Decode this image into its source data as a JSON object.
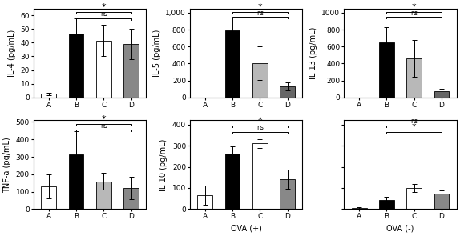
{
  "chart_data": [
    {
      "type": "bar",
      "ylabel": "IL-4 (pg/mL)",
      "categories": [
        "A",
        "B",
        "C",
        "D"
      ],
      "values": [
        2.5,
        46.5,
        41.5,
        39.0
      ],
      "errors": [
        1.0,
        11.0,
        11.5,
        11.0
      ],
      "colors": [
        "white",
        "black",
        "white",
        "#888888"
      ],
      "ylim": [
        0,
        65
      ],
      "yticks": [
        0,
        10,
        20,
        30,
        40,
        50,
        60
      ],
      "annotations": [
        {
          "x1": "B",
          "x2": "D",
          "y": 58,
          "text": "ns"
        },
        {
          "x1": "B",
          "x2": "D",
          "y": 62.5,
          "text": "*"
        }
      ]
    },
    {
      "type": "bar",
      "ylabel": "IL-5 (pg/mL)",
      "categories": [
        "A",
        "B",
        "C",
        "D"
      ],
      "values": [
        0,
        790,
        405,
        130
      ],
      "errors": [
        0,
        150,
        200,
        45
      ],
      "colors": [
        "white",
        "black",
        "#b8b8b8",
        "#666666"
      ],
      "ylim": [
        0,
        1050
      ],
      "yticks": [
        0,
        200,
        400,
        600,
        800,
        {
          "value": 1000,
          "label": "1,000"
        }
      ],
      "annotations": [
        {
          "x1": "B",
          "x2": "D",
          "y": 950,
          "text": "ns"
        },
        {
          "x1": "B",
          "x2": "D",
          "y": 1010,
          "text": "*"
        }
      ]
    },
    {
      "type": "bar",
      "ylabel": "IL-13 (pg/mL)",
      "categories": [
        "A",
        "B",
        "C",
        "D"
      ],
      "values": [
        0,
        650,
        460,
        75
      ],
      "errors": [
        0,
        180,
        220,
        30
      ],
      "colors": [
        "white",
        "black",
        "#b8b8b8",
        "#666666"
      ],
      "ylim": [
        0,
        1050
      ],
      "yticks": [
        0,
        200,
        400,
        600,
        800,
        1000
      ],
      "annotations": [
        {
          "x1": "B",
          "x2": "D",
          "y": 950,
          "text": "ns"
        },
        {
          "x1": "B",
          "x2": "D",
          "y": 1010,
          "text": "*"
        }
      ]
    },
    {
      "type": "bar",
      "ylabel": "TNF-a (pg/mL)",
      "categories": [
        "A",
        "B",
        "C",
        "D"
      ],
      "values": [
        130,
        315,
        160,
        120
      ],
      "errors": [
        70,
        130,
        50,
        65
      ],
      "colors": [
        "white",
        "black",
        "#b8b8b8",
        "#888888"
      ],
      "ylim": [
        0,
        510
      ],
      "yticks": [
        0,
        100,
        200,
        300,
        400,
        500
      ],
      "annotations": [
        {
          "x1": "B",
          "x2": "D",
          "y": 455,
          "text": "ns"
        },
        {
          "x1": "B",
          "x2": "D",
          "y": 490,
          "text": "*"
        }
      ]
    },
    {
      "type": "bar",
      "ylabel": "IL-10 (pg/mL)",
      "xlabel": "OVA (+)",
      "categories": [
        "A",
        "B",
        "C",
        "D"
      ],
      "values": [
        65,
        262,
        310,
        140
      ],
      "errors": [
        45,
        35,
        20,
        45
      ],
      "colors": [
        "white",
        "black",
        "white",
        "#888888"
      ],
      "ylim": [
        0,
        420
      ],
      "yticks": [
        0,
        100,
        200,
        300,
        400
      ],
      "annotations": [
        {
          "x1": "B",
          "x2": "D",
          "y": 365,
          "text": "ns"
        },
        {
          "x1": "B",
          "x2": "D",
          "y": 395,
          "text": "*"
        }
      ]
    },
    {
      "type": "bar",
      "xlabel": "OVA (-)",
      "categories": [
        "A",
        "B",
        "C",
        "D"
      ],
      "values": [
        5,
        45,
        100,
        72
      ],
      "errors": [
        3,
        15,
        20,
        18
      ],
      "colors": [
        "white",
        "black",
        "white",
        "#888888"
      ],
      "ylim": [
        0,
        420
      ],
      "yticks": [
        0,
        100,
        200,
        300,
        400
      ],
      "tick_labels": "x",
      "annotations": [
        {
          "x1": "B",
          "x2": "D",
          "y": 365,
          "text": "*"
        },
        {
          "x1": "B",
          "x2": "D",
          "y": 395,
          "text": "ns"
        }
      ]
    }
  ]
}
